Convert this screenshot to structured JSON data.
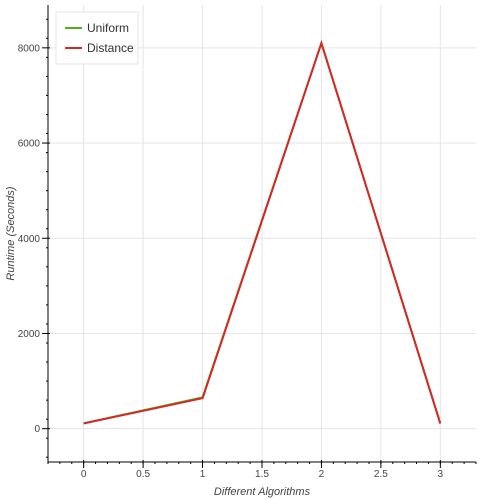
{
  "chart_data": {
    "type": "line",
    "xlabel": "Different Algorithms",
    "ylabel": "Runtime (Seconds)",
    "x": [
      0,
      1,
      2,
      3
    ],
    "xlim": [
      -0.3,
      3.3
    ],
    "ylim": [
      -700,
      8900
    ],
    "xticks": [
      0,
      0.5,
      1,
      1.5,
      2,
      2.5,
      3
    ],
    "xtick_labels": [
      "0",
      "0.5",
      "1",
      "1.5",
      "2",
      "2.5",
      "3"
    ],
    "yticks": [
      0,
      2000,
      4000,
      6000,
      8000
    ],
    "ytick_labels": [
      "0",
      "2000",
      "4000",
      "6000",
      "8000"
    ],
    "grid": true,
    "legend_position": "top-left",
    "series": [
      {
        "name": "Uniform",
        "color": "#4daf1a",
        "values": [
          110,
          660,
          8100,
          110
        ]
      },
      {
        "name": "Distance",
        "color": "#d62728",
        "values": [
          110,
          640,
          8100,
          110
        ]
      }
    ]
  }
}
